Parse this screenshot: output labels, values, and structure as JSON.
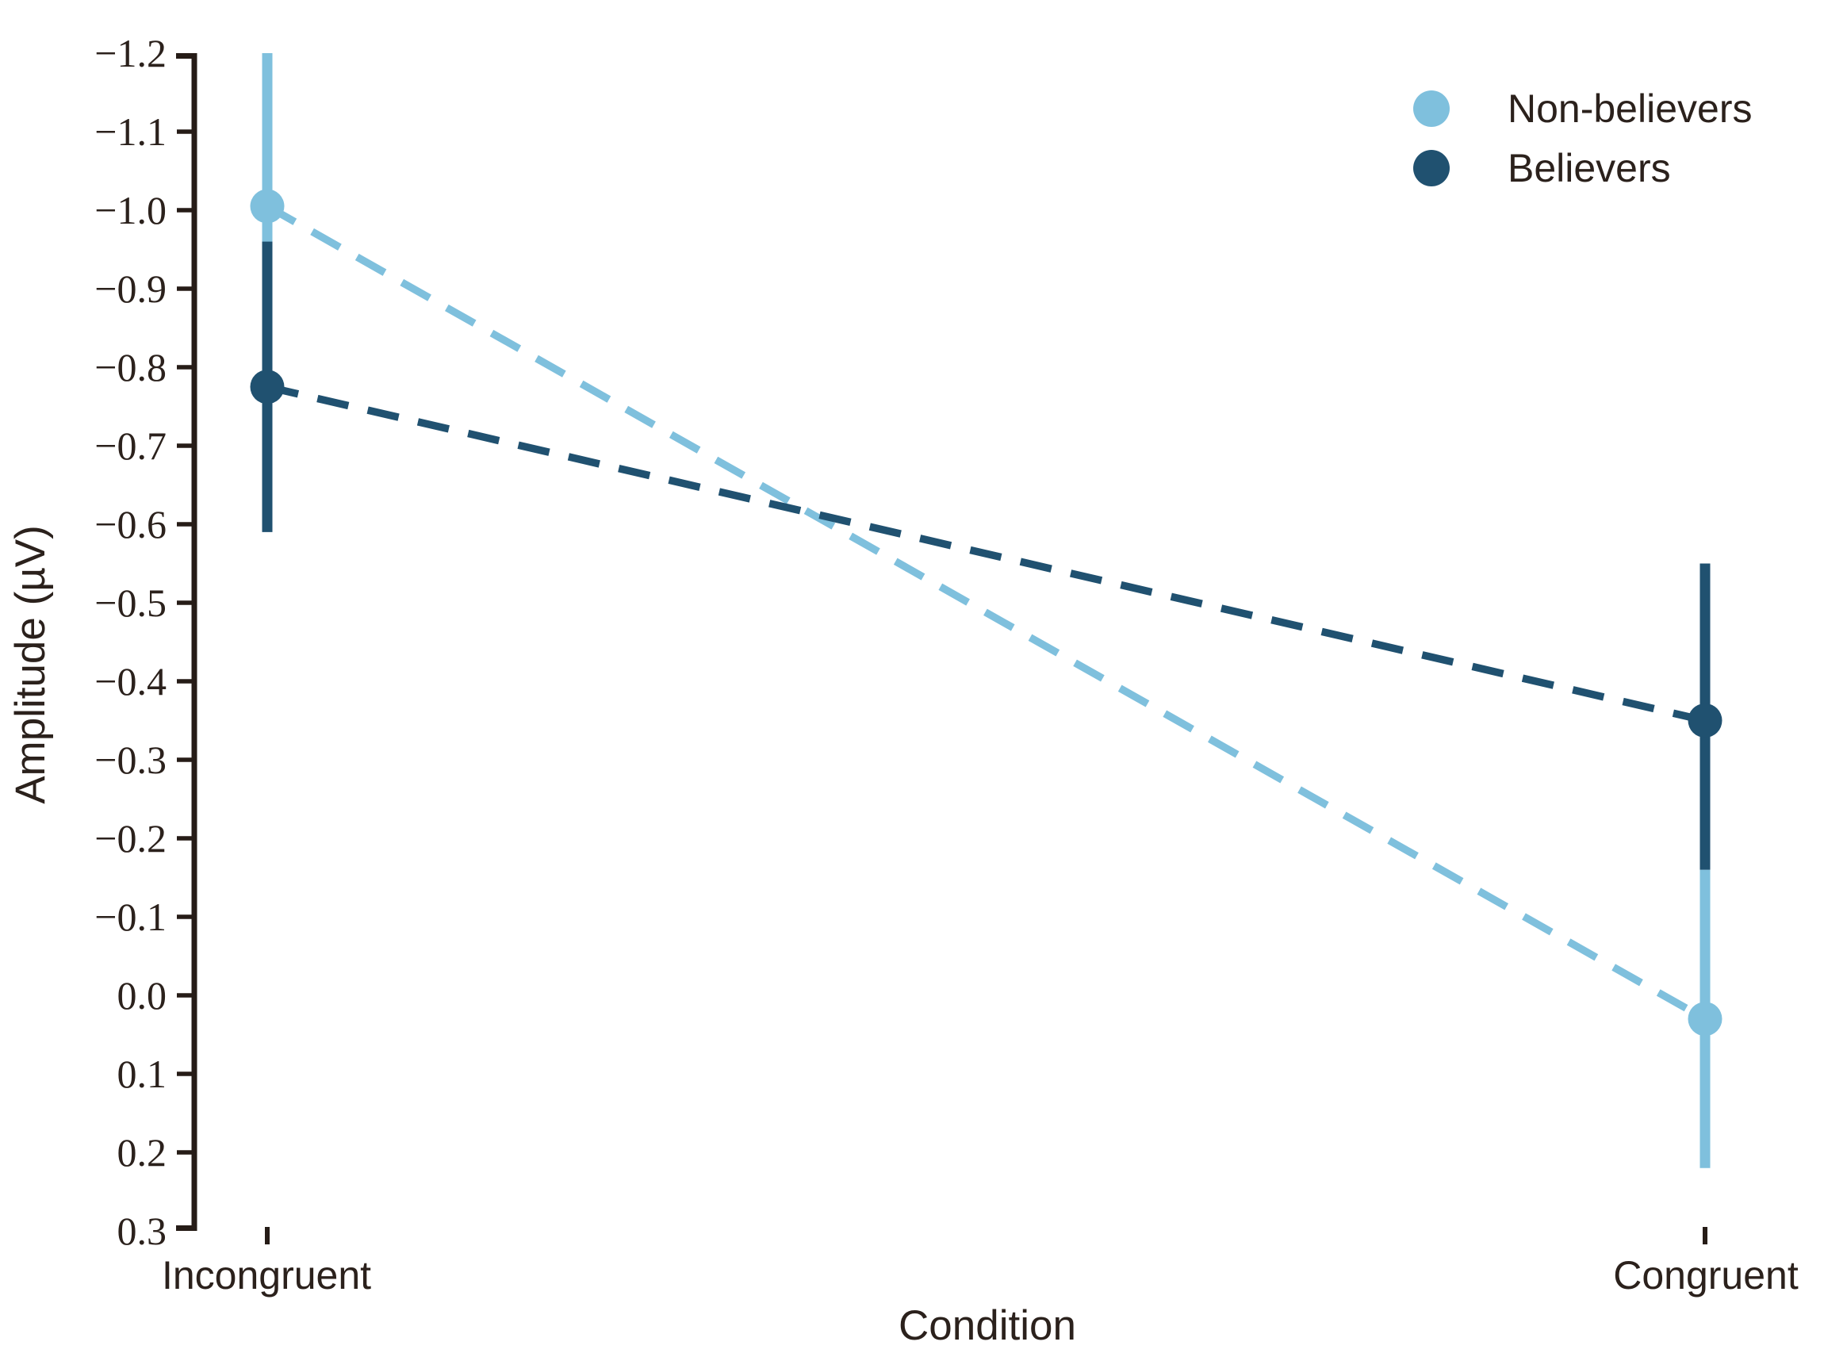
{
  "chart_data": {
    "type": "line",
    "title": "",
    "xlabel": "Condition",
    "ylabel": "Amplitude (µV)",
    "categories": [
      "Incongruent",
      "Congruent"
    ],
    "y_axis": {
      "min": -1.2,
      "max": 0.3,
      "inverted": true,
      "ticks": [
        -1.2,
        -1.1,
        -1.0,
        -0.9,
        -0.8,
        -0.7,
        -0.6,
        -0.5,
        -0.4,
        -0.3,
        -0.2,
        -0.1,
        0.0,
        0.1,
        0.2,
        0.3
      ]
    },
    "grid": false,
    "legend": {
      "position": "upper-right"
    },
    "series": [
      {
        "name": "Non-believers",
        "color": "#7fc0dd",
        "line_style": "dashed",
        "marker": "circle",
        "values": [
          -1.005,
          0.03
        ],
        "ci": [
          [
            -1.21,
            -0.8
          ],
          [
            -0.16,
            0.22
          ]
        ],
        "ci_clipped_at_axis_top": [
          true,
          false
        ]
      },
      {
        "name": "Believers",
        "color": "#205170",
        "line_style": "dashed",
        "marker": "circle",
        "values": [
          -0.775,
          -0.35
        ],
        "ci": [
          [
            -0.96,
            -0.59
          ],
          [
            -0.55,
            -0.16
          ]
        ],
        "ci_clipped_at_axis_top": [
          false,
          false
        ]
      }
    ],
    "colors": {
      "foreground_text": "#2b211c",
      "axis": "#261c17",
      "background": "#ffffff"
    }
  }
}
